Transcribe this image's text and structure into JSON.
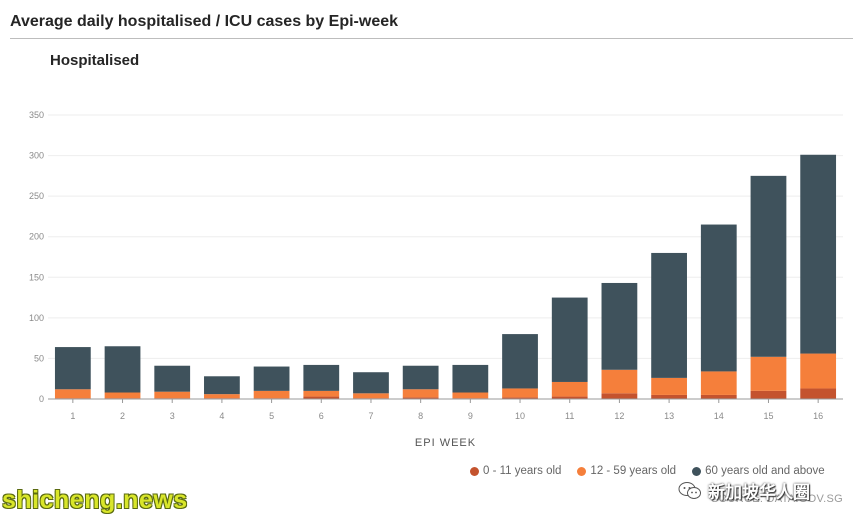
{
  "page": {
    "title": "Average daily hospitalised / ICU cases by Epi-week",
    "source": "SOURCE: DATA.GOV.SG",
    "watermark_left": "shicheng.news",
    "watermark_right": "新加坡华人圈"
  },
  "colors": {
    "age_0_11": "#c4532e",
    "age_12_59": "#f57f3b",
    "age_60_plus": "#3f525c",
    "grid": "#eeeeee",
    "axis": "#999999"
  },
  "chart_data": {
    "type": "bar",
    "stacked": true,
    "title": "Hospitalised",
    "xlabel": "EPI WEEK",
    "ylabel": "",
    "ylim": [
      0,
      350
    ],
    "yticks": [
      0,
      50,
      100,
      150,
      200,
      250,
      300,
      350
    ],
    "grid": true,
    "legend_position": "bottom-right",
    "categories": [
      "1",
      "2",
      "3",
      "4",
      "5",
      "6",
      "7",
      "8",
      "9",
      "10",
      "11",
      "12",
      "13",
      "14",
      "15",
      "16"
    ],
    "series": [
      {
        "name": "0 - 11 years old",
        "values": [
          1,
          1,
          1,
          1,
          1,
          3,
          1,
          2,
          1,
          2,
          3,
          7,
          5,
          5,
          10,
          13
        ]
      },
      {
        "name": "12 - 59 years old",
        "values": [
          11,
          7,
          8,
          5,
          9,
          7,
          6,
          10,
          7,
          11,
          18,
          29,
          21,
          29,
          42,
          43
        ]
      },
      {
        "name": "60 years old and above",
        "values": [
          52,
          57,
          32,
          22,
          30,
          32,
          26,
          29,
          34,
          67,
          104,
          107,
          154,
          181,
          223,
          245
        ]
      }
    ]
  }
}
